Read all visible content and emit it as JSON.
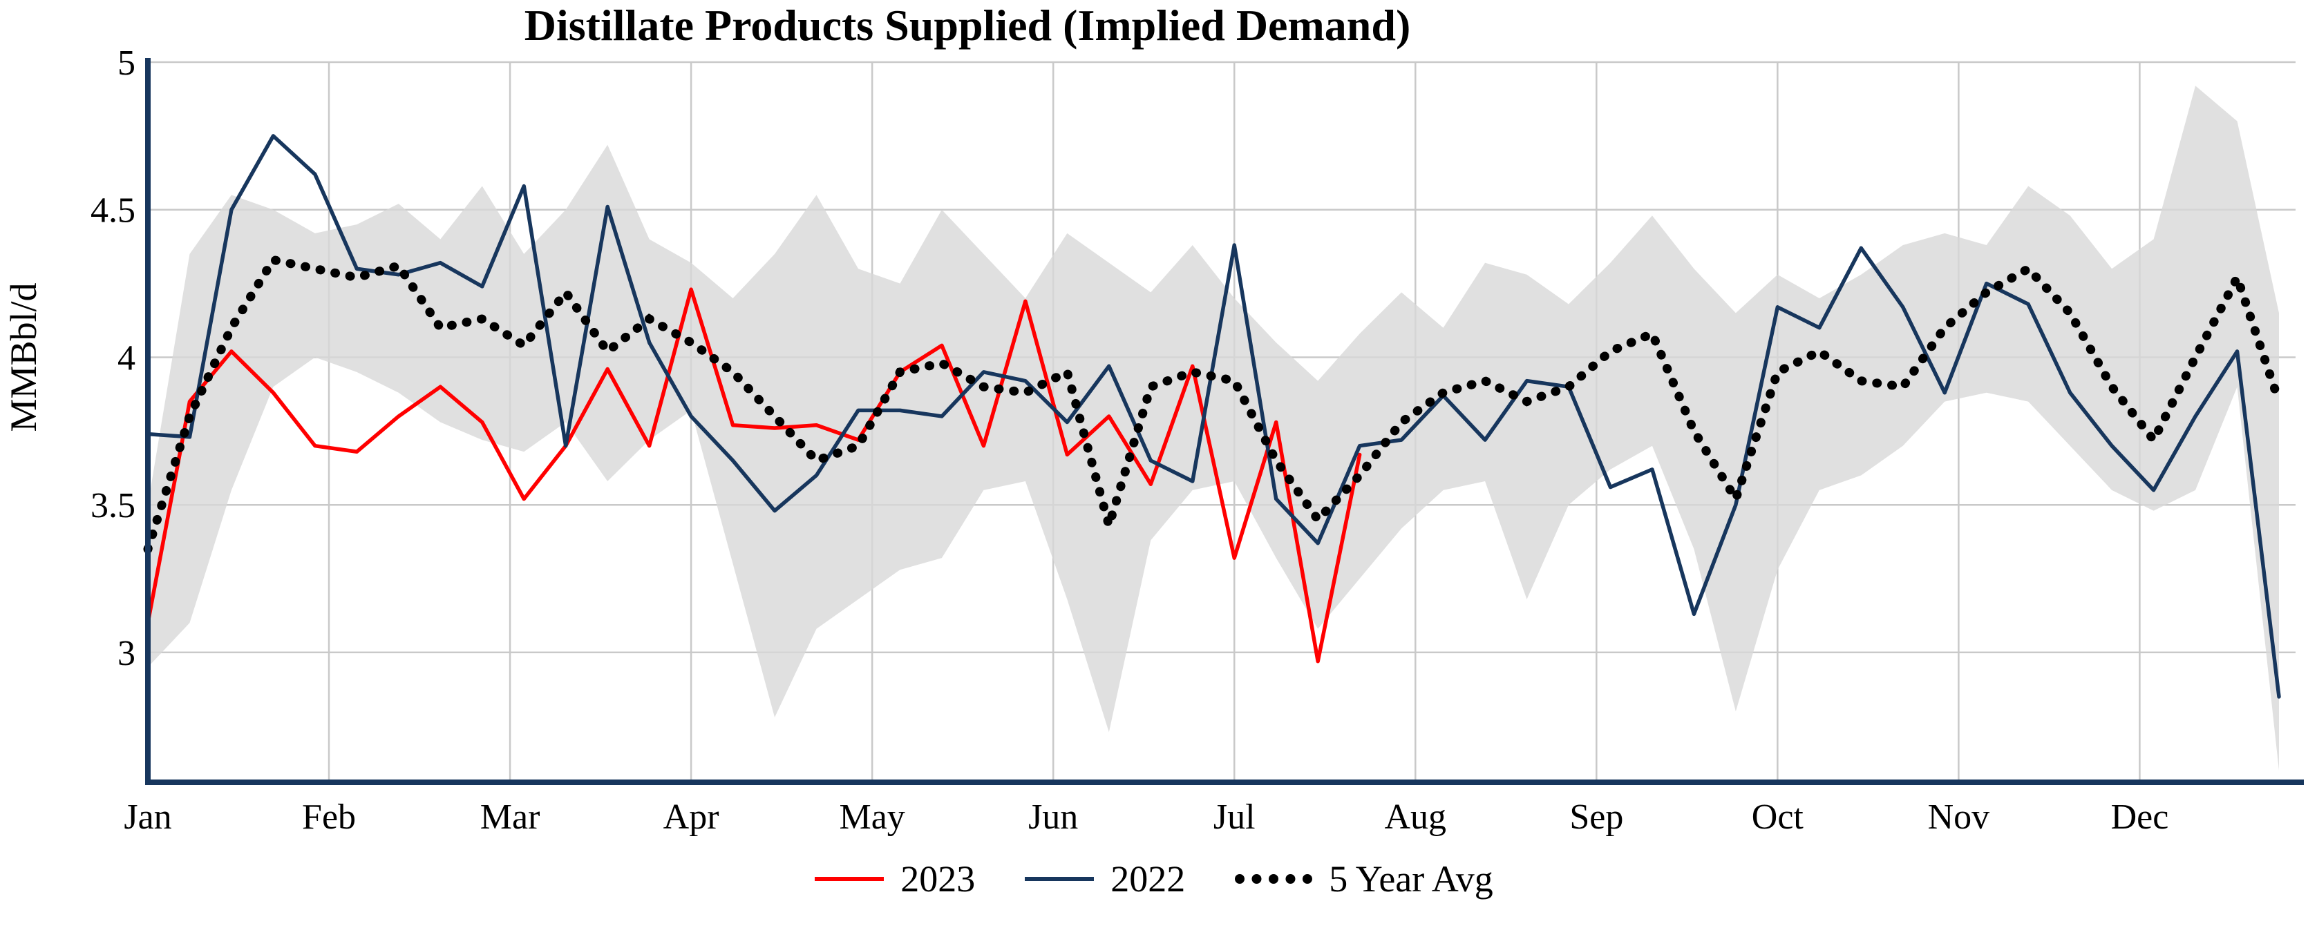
{
  "legend": [
    {
      "label": "2023",
      "color": "#ff0000",
      "style": "solid"
    },
    {
      "label": "2022",
      "color": "#17365d",
      "style": "solid"
    },
    {
      "label": "5 Year Avg",
      "color": "#000000",
      "style": "dotted"
    }
  ],
  "chart_data": {
    "type": "line",
    "title": "Distillate Products Supplied (Implied Demand)",
    "ylabel": "MMBbl/d",
    "xlabel": "",
    "yticks": [
      3,
      3.5,
      4,
      4.5,
      5
    ],
    "ylim": [
      2.56,
      5.0
    ],
    "grid": true,
    "legend_position": "bottom",
    "x_unit": "week-of-year",
    "weeks": 52,
    "months": [
      "Jan",
      "Feb",
      "Mar",
      "Apr",
      "May",
      "Jun",
      "Jul",
      "Aug",
      "Sep",
      "Oct",
      "Nov",
      "Dec"
    ],
    "band": {
      "name": "5-year-range",
      "color": "#d8d8d8",
      "upper": [
        3.5,
        4.35,
        4.55,
        4.5,
        4.42,
        4.45,
        4.52,
        4.4,
        4.58,
        4.35,
        4.5,
        4.72,
        4.4,
        4.32,
        4.2,
        4.35,
        4.55,
        4.3,
        4.25,
        4.5,
        4.35,
        4.2,
        4.42,
        4.32,
        4.22,
        4.38,
        4.2,
        4.05,
        3.92,
        4.08,
        4.22,
        4.1,
        4.32,
        4.28,
        4.18,
        4.32,
        4.48,
        4.3,
        4.15,
        4.28,
        4.2,
        4.28,
        4.38,
        4.42,
        4.38,
        4.58,
        4.48,
        4.3,
        4.4,
        4.92,
        4.8,
        4.15
      ],
      "lower": [
        2.95,
        3.1,
        3.55,
        3.9,
        4.0,
        3.95,
        3.88,
        3.78,
        3.72,
        3.68,
        3.78,
        3.58,
        3.72,
        3.82,
        3.3,
        2.78,
        3.08,
        3.18,
        3.28,
        3.32,
        3.55,
        3.58,
        3.18,
        2.73,
        3.38,
        3.55,
        3.58,
        3.32,
        3.08,
        3.25,
        3.42,
        3.55,
        3.58,
        3.18,
        3.5,
        3.62,
        3.7,
        3.35,
        2.8,
        3.28,
        3.55,
        3.6,
        3.7,
        3.85,
        3.88,
        3.85,
        3.7,
        3.55,
        3.48,
        3.55,
        3.9,
        2.6
      ]
    },
    "series": [
      {
        "name": "2023",
        "color": "#ff0000",
        "style": "solid",
        "values": [
          3.1,
          3.85,
          4.02,
          3.88,
          3.7,
          3.68,
          3.8,
          3.9,
          3.78,
          3.52,
          3.7,
          3.96,
          3.7,
          4.23,
          3.77,
          3.76,
          3.77,
          3.72,
          3.95,
          4.04,
          3.7,
          4.19,
          3.67,
          3.8,
          3.57,
          3.97,
          3.32,
          3.78,
          2.97,
          3.67
        ]
      },
      {
        "name": "2022",
        "color": "#17365d",
        "style": "solid",
        "values": [
          3.74,
          3.73,
          4.5,
          4.75,
          4.62,
          4.3,
          4.28,
          4.32,
          4.24,
          4.58,
          3.7,
          4.51,
          4.05,
          3.8,
          3.65,
          3.48,
          3.6,
          3.82,
          3.82,
          3.8,
          3.95,
          3.92,
          3.78,
          3.97,
          3.65,
          3.58,
          4.38,
          3.52,
          3.37,
          3.7,
          3.72,
          3.87,
          3.72,
          3.92,
          3.9,
          3.56,
          3.62,
          3.13,
          3.5,
          4.17,
          4.1,
          4.37,
          4.17,
          3.88,
          4.25,
          4.18,
          3.88,
          3.7,
          3.55,
          3.8,
          4.02,
          2.85
        ]
      },
      {
        "name": "5 Year Avg",
        "color": "#000000",
        "style": "dotted",
        "values": [
          3.35,
          3.8,
          4.1,
          4.33,
          4.3,
          4.27,
          4.31,
          4.1,
          4.13,
          4.04,
          4.22,
          4.02,
          4.13,
          4.05,
          3.95,
          3.8,
          3.65,
          3.7,
          3.95,
          3.98,
          3.9,
          3.88,
          3.95,
          3.43,
          3.9,
          3.95,
          3.92,
          3.65,
          3.45,
          3.6,
          3.78,
          3.88,
          3.92,
          3.85,
          3.9,
          4.02,
          4.08,
          3.75,
          3.52,
          3.95,
          4.02,
          3.92,
          3.9,
          4.1,
          4.22,
          4.3,
          4.15,
          3.9,
          3.72,
          4.0,
          4.27,
          3.85
        ]
      }
    ]
  }
}
